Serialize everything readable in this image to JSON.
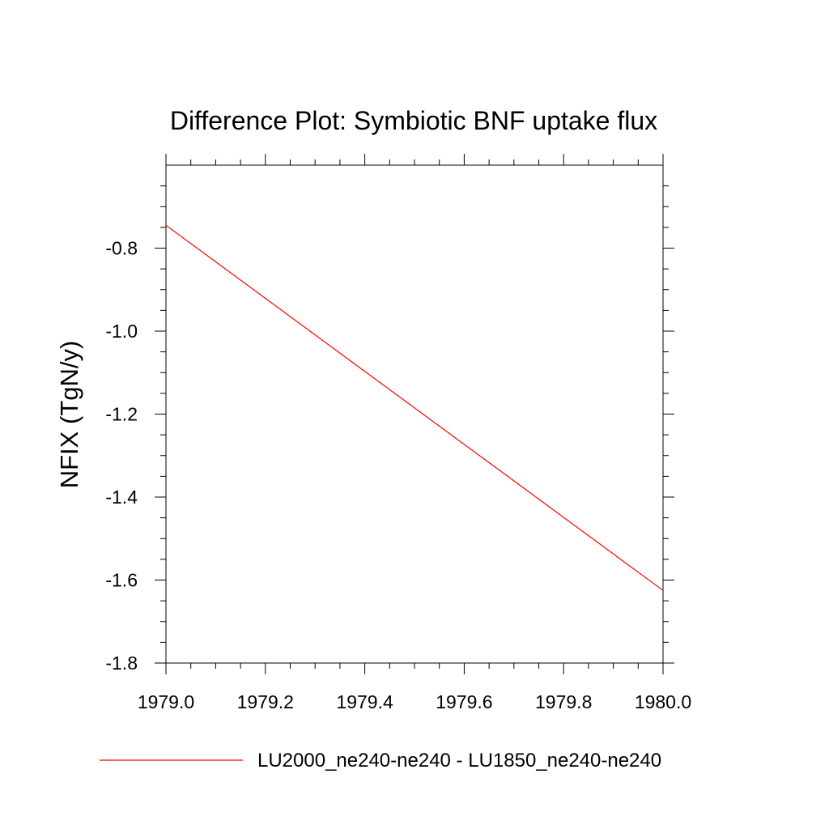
{
  "chart_data": {
    "type": "line",
    "title": "Difference Plot: Symbiotic BNF uptake flux",
    "xlabel": "",
    "ylabel": "NFIX  (TgN/y)",
    "xlim": [
      1979.0,
      1980.0
    ],
    "ylim": [
      -1.8,
      -0.6
    ],
    "x_ticks": [
      1979.0,
      1979.2,
      1979.4,
      1979.6,
      1979.8,
      1980.0
    ],
    "x_tick_labels": [
      "1979.0",
      "1979.2",
      "1979.4",
      "1979.6",
      "1979.8",
      "1980.0"
    ],
    "y_ticks": [
      -1.8,
      -1.6,
      -1.4,
      -1.2,
      -1.0,
      -0.8
    ],
    "y_tick_labels": [
      "-1.8",
      "-1.6",
      "-1.4",
      "-1.2",
      "-1.0",
      "-0.8"
    ],
    "grid": false,
    "legend_position": "bottom",
    "series": [
      {
        "name": "LU2000_ne240-ne240 - LU1850_ne240-ne240",
        "color": "#ff0000",
        "x": [
          1979.0,
          1980.0
        ],
        "y": [
          -0.745,
          -1.625
        ]
      }
    ]
  }
}
